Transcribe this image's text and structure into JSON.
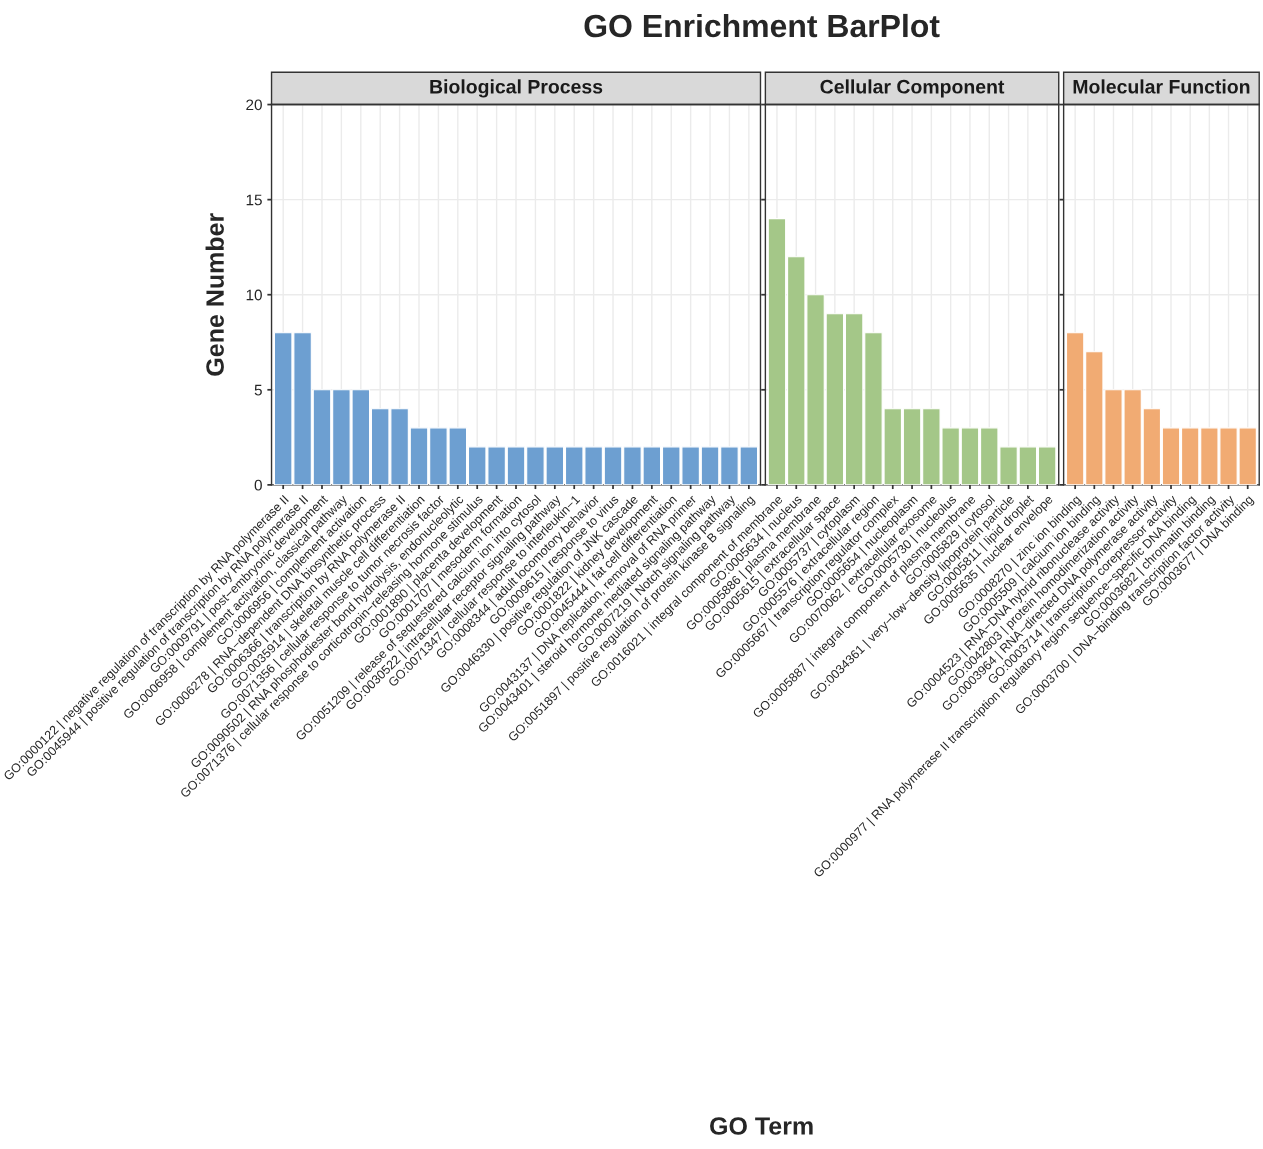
{
  "chart_data": [
    {
      "type": "bar",
      "title": "Biological Process",
      "annotations": [
        "GO Enrichment BarPlot"
      ],
      "ylabel": "Gene Number",
      "categories": [
        "GO:0000122 | negative regulation of transcription by RNA polymerase II",
        "GO:0045944 | positive regulation of transcription by RNA polymerase II",
        "GO:0009791 | post−embryonic development",
        "GO:0006958 | complement activation, classical pathway",
        "GO:0006956 | complement activation",
        "GO:0006278 | RNA−dependent DNA biosynthetic process",
        "GO:0006366 | transcription by RNA polymerase II",
        "GO:0035914 | skeletal muscle cell differentiation",
        "GO:0071356 | cellular response to tumor necrosis factor",
        "GO:0090502 | RNA phosphodiester bond hydrolysis, endonucleolytic",
        "GO:0071376 | cellular response to corticotropin−releasing hormone stimulus",
        "GO:0001890 | placenta development",
        "GO:0001707 | mesoderm formation",
        "GO:0051209 | release of sequestered calcium ion into cytosol",
        "GO:0030522 | intracellular receptor signaling pathway",
        "GO:0071347 | cellular response to interleukin−1",
        "GO:0008344 | adult locomotory behavior",
        "GO:0009615 | response to virus",
        "GO:0046330 | positive regulation of JNK cascade",
        "GO:0001822 | kidney development",
        "GO:0045444 | fat cell differentiation",
        "GO:0043137 | DNA replication, removal of RNA primer",
        "GO:0043401 | steroid hormone mediated signaling pathway",
        "GO:0007219 | Notch signaling pathway",
        "GO:0051897 | positive regulation of protein kinase B signaling"
      ],
      "values": [
        8,
        8,
        5,
        5,
        5,
        4,
        4,
        3,
        3,
        3,
        2,
        2,
        2,
        2,
        2,
        2,
        2,
        2,
        2,
        2,
        2,
        2,
        2,
        2,
        2
      ],
      "color": "#6d9fd1",
      "ylim": [
        0,
        20
      ],
      "yticks": [
        0,
        5,
        10,
        15,
        20
      ],
      "grid": true
    },
    {
      "type": "bar",
      "title": "Cellular Component",
      "xlabel": "GO Term",
      "categories": [
        "GO:0016021 | integral component of membrane",
        "GO:0005634 | nucleus",
        "GO:0005886 | plasma membrane",
        "GO:0005615 | extracellular space",
        "GO:0005737 | cytoplasm",
        "GO:0005576 | extracellular region",
        "GO:0005667 | transcription regulator complex",
        "GO:0005654 | nucleoplasm",
        "GO:0070062 | extracellular exosome",
        "GO:0005730 | nucleolus",
        "GO:0005887 | integral component of plasma membrane",
        "GO:0005829 | cytosol",
        "GO:0034361 | very−low−density lipoprotein particle",
        "GO:0005811 | lipid droplet",
        "GO:0005635 | nuclear envelope"
      ],
      "values": [
        14,
        12,
        10,
        9,
        9,
        8,
        4,
        4,
        4,
        3,
        3,
        3,
        2,
        2,
        2
      ],
      "color": "#a4c788",
      "ylim": [
        0,
        20
      ],
      "yticks": [
        0,
        5,
        10,
        15,
        20
      ],
      "grid": true,
      "tick_labels": "x"
    },
    {
      "type": "bar",
      "title": "Molecular Function",
      "categories": [
        "GO:0008270 | zinc ion binding",
        "GO:0005509 | calcium ion binding",
        "GO:0004523 | RNA−DNA hybrid ribonuclease activity",
        "GO:0042803 | protein homodimerization activity",
        "GO:0003964 | RNA−directed DNA polymerase activity",
        "GO:0003714 | transcription corepressor activity",
        "GO:0000977 | RNA polymerase II transcription regulatory region sequence−specific DNA binding",
        "GO:0003682 | chromatin binding",
        "GO:0003700 | DNA−binding transcription factor activity",
        "GO:0003677 | DNA binding"
      ],
      "values": [
        8,
        7,
        5,
        5,
        4,
        3,
        3,
        3,
        3,
        3
      ],
      "color": "#f1ab73",
      "ylim": [
        0,
        20
      ],
      "yticks": [
        0,
        5,
        10,
        15,
        20
      ],
      "grid": true,
      "tick_labels": "x"
    }
  ]
}
